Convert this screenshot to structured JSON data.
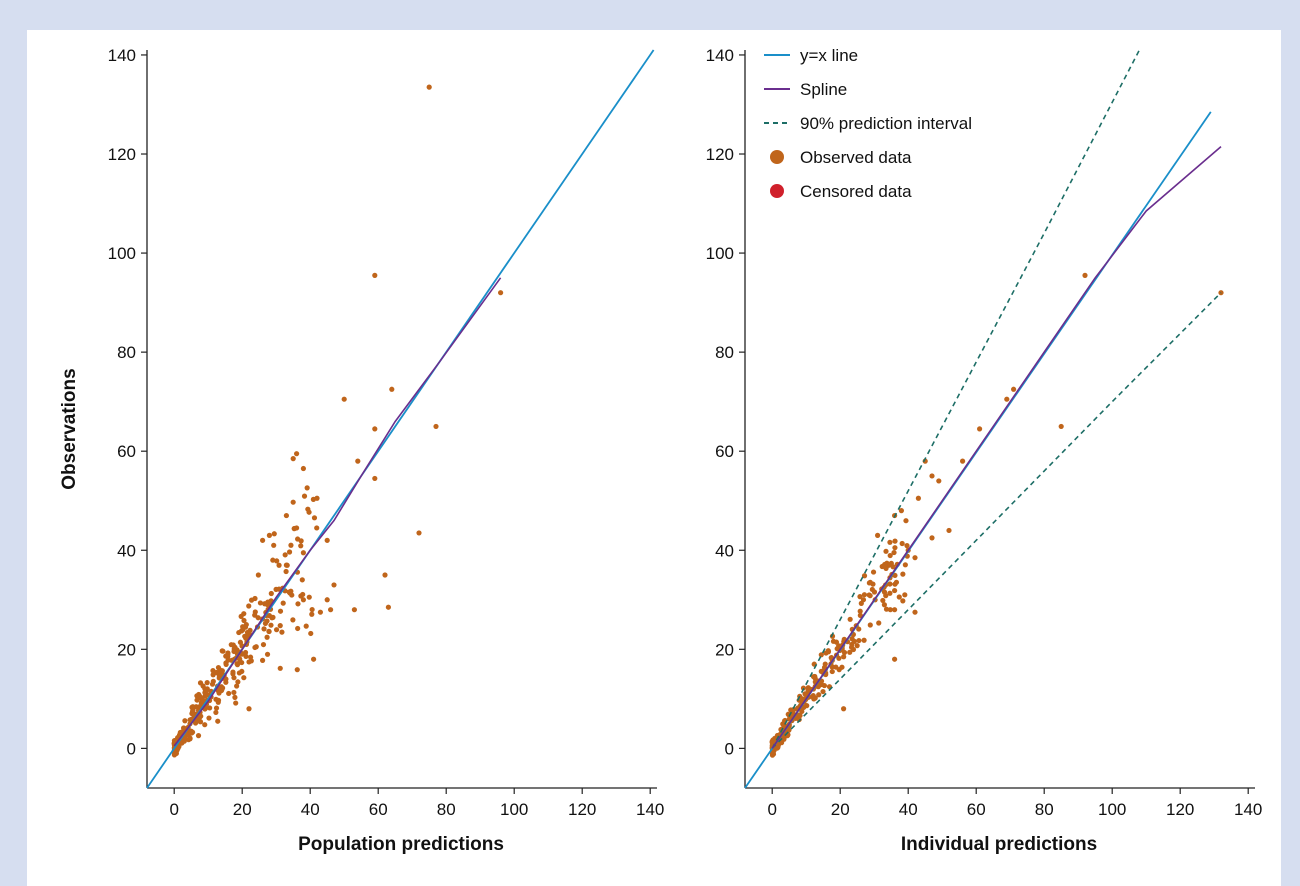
{
  "colors": {
    "identity": "#1a8fc9",
    "spline": "#6a2e8e",
    "pi": "#1d6e66",
    "observed": "#c0651b",
    "censored": "#d0202b",
    "background": "#d6def0"
  },
  "legend": [
    {
      "label": "y=x line",
      "kind": "line",
      "color": "#1a8fc9"
    },
    {
      "label": "Spline",
      "kind": "line",
      "color": "#6a2e8e"
    },
    {
      "label": "90% prediction interval",
      "kind": "dashed",
      "color": "#1d6e66"
    },
    {
      "label": "Observed data",
      "kind": "dot",
      "color": "#c0651b"
    },
    {
      "label": "Censored data",
      "kind": "dot",
      "color": "#d0202b"
    }
  ],
  "chart_data": [
    {
      "type": "scatter",
      "xlabel": "Population predictions",
      "ylabel": "Observations",
      "xlim": [
        -8,
        142
      ],
      "ylim": [
        -8,
        141
      ],
      "xticks": [
        0,
        20,
        40,
        60,
        80,
        100,
        120,
        140
      ],
      "yticks": [
        0,
        20,
        40,
        60,
        80,
        100,
        120,
        140
      ],
      "identity": [
        [
          -8,
          -8
        ],
        [
          141,
          141
        ]
      ],
      "spline": [
        [
          0,
          0.5
        ],
        [
          10,
          9.5
        ],
        [
          20,
          20
        ],
        [
          30,
          30.5
        ],
        [
          40,
          40
        ],
        [
          47,
          46
        ],
        [
          55,
          55
        ],
        [
          65,
          66
        ],
        [
          78,
          78
        ],
        [
          96,
          95
        ]
      ],
      "outliers": [
        [
          75,
          133.5
        ],
        [
          59,
          95.5
        ],
        [
          96,
          92
        ],
        [
          50,
          70.5
        ],
        [
          64,
          72.5
        ],
        [
          77,
          65
        ],
        [
          59,
          64.5
        ],
        [
          36,
          59.5
        ],
        [
          35,
          58.5
        ],
        [
          38,
          56.5
        ],
        [
          54,
          58
        ],
        [
          59,
          54.5
        ],
        [
          42,
          50.5
        ],
        [
          33,
          47
        ],
        [
          28,
          43
        ],
        [
          72,
          43.5
        ],
        [
          62,
          35
        ],
        [
          47,
          33
        ],
        [
          45,
          42
        ],
        [
          41,
          18
        ],
        [
          53,
          28
        ],
        [
          63,
          28.5
        ],
        [
          46,
          28
        ],
        [
          43,
          27.5
        ],
        [
          36,
          44.5
        ],
        [
          38,
          39.5
        ],
        [
          29,
          38
        ],
        [
          26,
          42
        ],
        [
          38,
          30
        ],
        [
          33,
          37
        ],
        [
          22,
          8
        ],
        [
          45,
          30
        ]
      ],
      "cluster": {
        "seed": 11,
        "count": 340,
        "xmax": 42,
        "spread": 0.22
      }
    },
    {
      "type": "scatter",
      "xlabel": "Individual predictions",
      "ylabel": "",
      "xlim": [
        -8,
        142
      ],
      "ylim": [
        -8,
        141
      ],
      "xticks": [
        0,
        20,
        40,
        60,
        80,
        100,
        120,
        140
      ],
      "yticks": [
        0,
        20,
        40,
        60,
        80,
        100,
        120,
        140
      ],
      "identity": [
        [
          -8,
          -8
        ],
        [
          129,
          128.5
        ]
      ],
      "spline": [
        [
          0,
          0
        ],
        [
          20,
          20
        ],
        [
          40,
          40
        ],
        [
          60,
          60
        ],
        [
          80,
          80
        ],
        [
          95,
          95
        ],
        [
          110,
          108.5
        ],
        [
          132,
          121.5
        ]
      ],
      "pi_upper": [
        [
          0,
          0
        ],
        [
          20,
          26
        ],
        [
          40,
          52
        ],
        [
          60,
          78
        ],
        [
          80,
          104
        ],
        [
          108,
          141
        ]
      ],
      "pi_lower": [
        [
          0,
          0
        ],
        [
          20,
          14
        ],
        [
          40,
          28
        ],
        [
          60,
          42
        ],
        [
          80,
          56
        ],
        [
          100,
          70
        ],
        [
          132,
          92
        ]
      ],
      "outliers": [
        [
          92,
          95.5
        ],
        [
          132,
          92
        ],
        [
          71,
          72.5
        ],
        [
          69,
          70.5
        ],
        [
          85,
          65
        ],
        [
          61,
          64.5
        ],
        [
          56,
          58
        ],
        [
          45,
          58
        ],
        [
          47,
          55
        ],
        [
          43,
          50.5
        ],
        [
          49,
          54
        ],
        [
          52,
          44
        ],
        [
          36,
          47
        ],
        [
          38,
          48
        ],
        [
          47,
          42.5
        ],
        [
          42,
          38.5
        ],
        [
          42,
          27.5
        ],
        [
          36,
          18
        ],
        [
          21,
          8
        ],
        [
          36,
          28
        ],
        [
          39,
          31
        ],
        [
          33,
          29
        ],
        [
          31,
          43
        ],
        [
          40,
          40
        ]
      ],
      "cluster": {
        "seed": 29,
        "count": 260,
        "xmax": 40,
        "spread": 0.12
      }
    }
  ]
}
